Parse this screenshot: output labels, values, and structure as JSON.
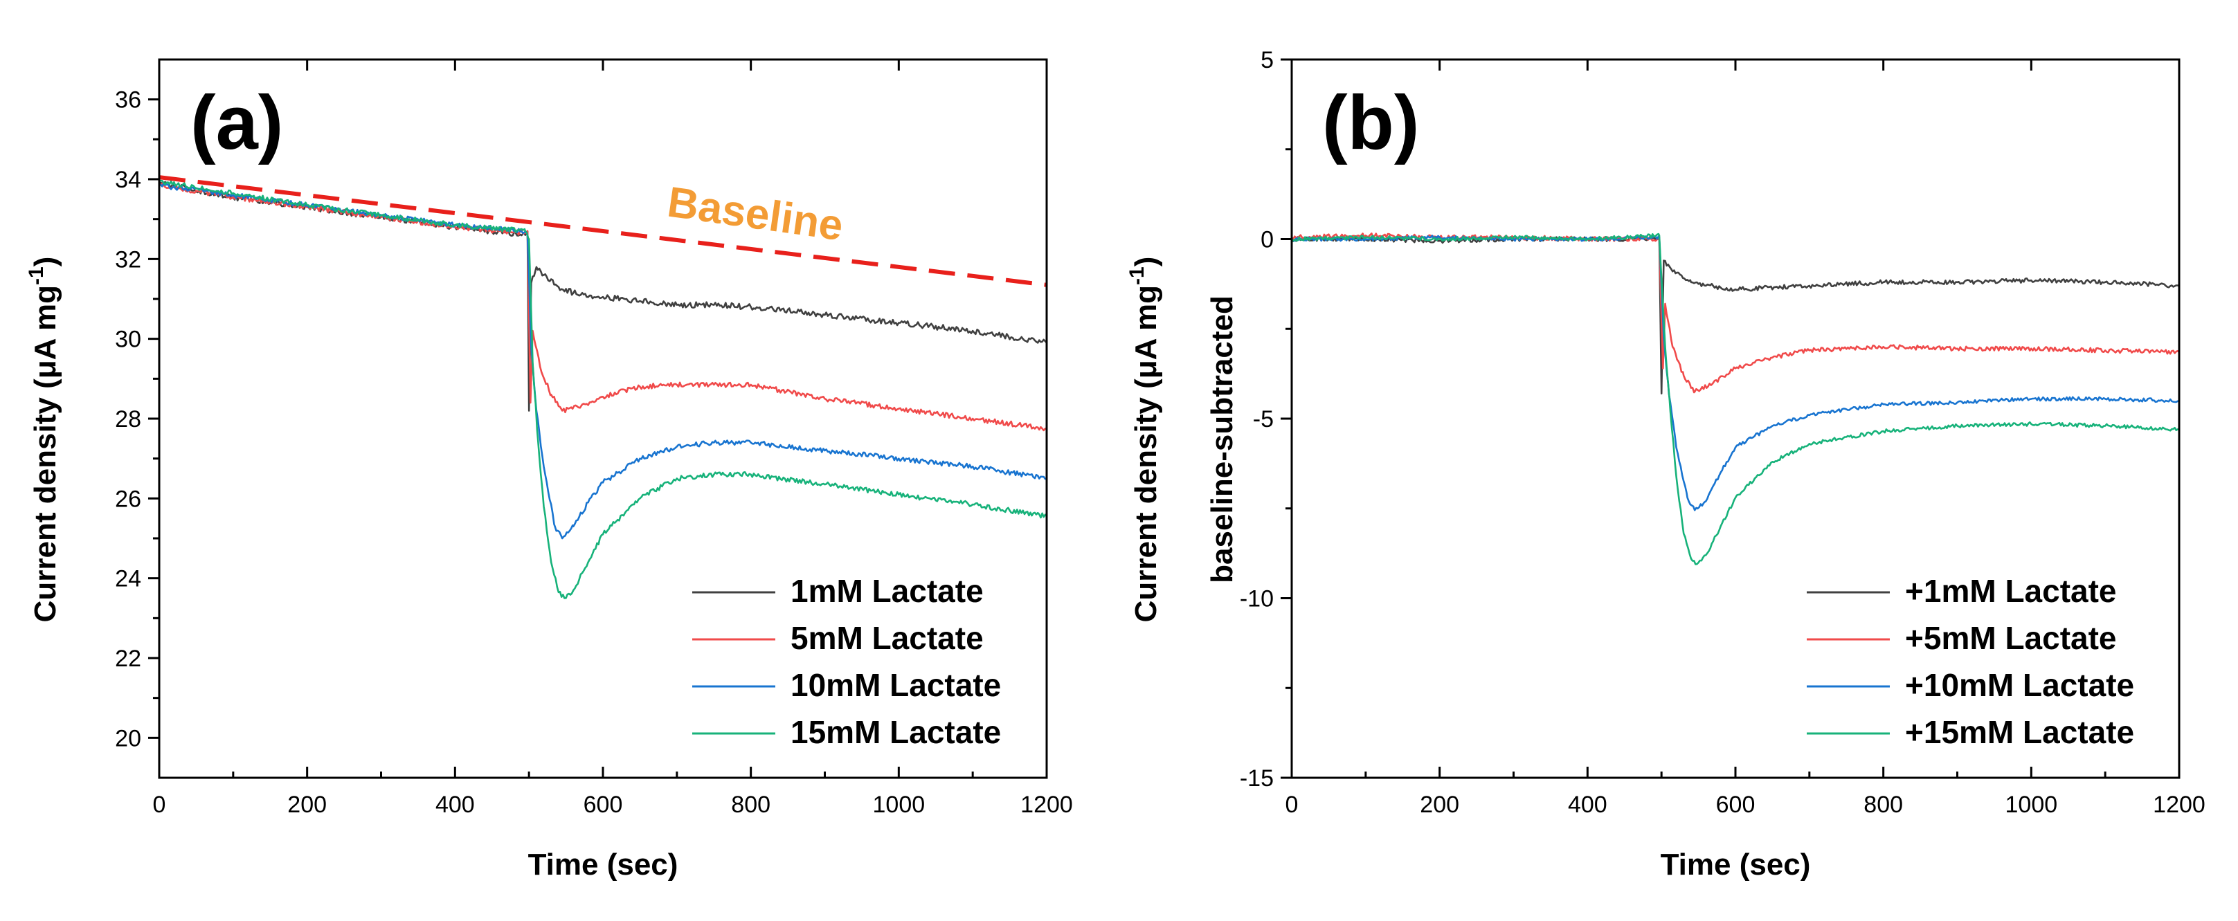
{
  "chart_data": [
    {
      "type": "line",
      "panel_label": "(a)",
      "xlabel": "Time (sec)",
      "ylabel": "Current density (μA mg",
      "ylabel_sup": "-1",
      "ylabel_close": ")",
      "ylabel_line2": "",
      "xlim": [
        0,
        1200
      ],
      "ylim": [
        19,
        37
      ],
      "xticks": [
        0,
        200,
        400,
        600,
        800,
        1000,
        1200
      ],
      "yticks": [
        20,
        22,
        24,
        26,
        28,
        30,
        32,
        34,
        36
      ],
      "grid": false,
      "legend_position": "bottom-right",
      "annotation": {
        "text": "Baseline",
        "color": "#f39c35",
        "x": [
          0,
          1200
        ],
        "y": [
          34.05,
          31.35
        ],
        "line_color": "#e8201b"
      },
      "series": [
        {
          "name": "1mM Lactate",
          "color": "#404040",
          "noise": 0.07,
          "points": [
            [
              0,
              33.9
            ],
            [
              100,
              33.55
            ],
            [
              200,
              33.3
            ],
            [
              300,
              33.05
            ],
            [
              400,
              32.8
            ],
            [
              495,
              32.6
            ],
            [
              498,
              32.7
            ],
            [
              500,
              28.2
            ],
            [
              503,
              31.4
            ],
            [
              510,
              31.8
            ],
            [
              520,
              31.6
            ],
            [
              540,
              31.3
            ],
            [
              560,
              31.15
            ],
            [
              600,
              31.05
            ],
            [
              650,
              30.95
            ],
            [
              700,
              30.85
            ],
            [
              750,
              30.85
            ],
            [
              800,
              30.8
            ],
            [
              900,
              30.6
            ],
            [
              1000,
              30.4
            ],
            [
              1100,
              30.2
            ],
            [
              1200,
              29.9
            ]
          ]
        },
        {
          "name": "5mM Lactate",
          "color": "#f04a4a",
          "noise": 0.06,
          "points": [
            [
              0,
              33.85
            ],
            [
              100,
              33.55
            ],
            [
              200,
              33.3
            ],
            [
              300,
              33.05
            ],
            [
              400,
              32.8
            ],
            [
              495,
              32.65
            ],
            [
              498,
              32.7
            ],
            [
              502,
              28.4
            ],
            [
              505,
              30.2
            ],
            [
              515,
              29.3
            ],
            [
              530,
              28.6
            ],
            [
              545,
              28.2
            ],
            [
              570,
              28.3
            ],
            [
              600,
              28.55
            ],
            [
              650,
              28.8
            ],
            [
              700,
              28.85
            ],
            [
              750,
              28.85
            ],
            [
              800,
              28.85
            ],
            [
              900,
              28.5
            ],
            [
              1000,
              28.25
            ],
            [
              1100,
              28.0
            ],
            [
              1200,
              27.75
            ]
          ]
        },
        {
          "name": "10mM Lactate",
          "color": "#1874d0",
          "noise": 0.06,
          "points": [
            [
              0,
              33.85
            ],
            [
              100,
              33.6
            ],
            [
              200,
              33.35
            ],
            [
              300,
              33.1
            ],
            [
              400,
              32.85
            ],
            [
              495,
              32.7
            ],
            [
              498,
              32.6
            ],
            [
              503,
              29.8
            ],
            [
              510,
              28.2
            ],
            [
              520,
              26.8
            ],
            [
              535,
              25.3
            ],
            [
              545,
              25.0
            ],
            [
              560,
              25.3
            ],
            [
              580,
              25.9
            ],
            [
              600,
              26.4
            ],
            [
              650,
              27.0
            ],
            [
              700,
              27.3
            ],
            [
              750,
              27.4
            ],
            [
              800,
              27.4
            ],
            [
              900,
              27.2
            ],
            [
              1000,
              27.0
            ],
            [
              1100,
              26.8
            ],
            [
              1200,
              26.5
            ]
          ]
        },
        {
          "name": "15mM Lactate",
          "color": "#17b27a",
          "noise": 0.06,
          "points": [
            [
              0,
              33.95
            ],
            [
              100,
              33.65
            ],
            [
              200,
              33.35
            ],
            [
              300,
              33.1
            ],
            [
              400,
              32.85
            ],
            [
              495,
              32.7
            ],
            [
              500,
              32.5
            ],
            [
              505,
              29.4
            ],
            [
              512,
              27.5
            ],
            [
              520,
              25.8
            ],
            [
              530,
              24.4
            ],
            [
              540,
              23.65
            ],
            [
              548,
              23.5
            ],
            [
              560,
              23.7
            ],
            [
              580,
              24.4
            ],
            [
              600,
              25.1
            ],
            [
              650,
              26.0
            ],
            [
              700,
              26.5
            ],
            [
              750,
              26.6
            ],
            [
              800,
              26.6
            ],
            [
              900,
              26.35
            ],
            [
              1000,
              26.1
            ],
            [
              1100,
              25.85
            ],
            [
              1200,
              25.55
            ]
          ]
        }
      ]
    },
    {
      "type": "line",
      "panel_label": "(b)",
      "xlabel": "Time (sec)",
      "ylabel": "Current density (μA mg",
      "ylabel_sup": "-1",
      "ylabel_close": ")",
      "ylabel_line2": "baseline-subtracted",
      "xlim": [
        0,
        1200
      ],
      "ylim": [
        -15,
        5
      ],
      "xticks": [
        0,
        200,
        400,
        600,
        800,
        1000,
        1200
      ],
      "yticks": [
        -15,
        -10,
        -5,
        0,
        5
      ],
      "grid": false,
      "legend_position": "bottom-right",
      "series": [
        {
          "name": "+1mM Lactate",
          "color": "#404040",
          "noise": 0.06,
          "points": [
            [
              0,
              0
            ],
            [
              100,
              0
            ],
            [
              200,
              -0.05
            ],
            [
              300,
              0
            ],
            [
              400,
              0
            ],
            [
              497,
              0
            ],
            [
              500,
              -4.3
            ],
            [
              503,
              -0.6
            ],
            [
              515,
              -0.9
            ],
            [
              540,
              -1.2
            ],
            [
              580,
              -1.35
            ],
            [
              600,
              -1.4
            ],
            [
              700,
              -1.3
            ],
            [
              800,
              -1.2
            ],
            [
              900,
              -1.2
            ],
            [
              1000,
              -1.15
            ],
            [
              1100,
              -1.2
            ],
            [
              1200,
              -1.3
            ]
          ]
        },
        {
          "name": "+5mM Lactate",
          "color": "#f04a4a",
          "noise": 0.06,
          "points": [
            [
              0,
              0.05
            ],
            [
              100,
              0.1
            ],
            [
              200,
              0.05
            ],
            [
              300,
              0.05
            ],
            [
              400,
              0
            ],
            [
              497,
              0
            ],
            [
              502,
              -3.6
            ],
            [
              505,
              -1.8
            ],
            [
              515,
              -3.0
            ],
            [
              530,
              -3.8
            ],
            [
              545,
              -4.25
            ],
            [
              570,
              -4.0
            ],
            [
              600,
              -3.6
            ],
            [
              650,
              -3.3
            ],
            [
              700,
              -3.1
            ],
            [
              800,
              -3.0
            ],
            [
              900,
              -3.05
            ],
            [
              1000,
              -3.05
            ],
            [
              1100,
              -3.1
            ],
            [
              1200,
              -3.15
            ]
          ]
        },
        {
          "name": "+10mM Lactate",
          "color": "#1874d0",
          "noise": 0.05,
          "points": [
            [
              0,
              0
            ],
            [
              100,
              0
            ],
            [
              200,
              0.05
            ],
            [
              300,
              0
            ],
            [
              400,
              0
            ],
            [
              497,
              0.05
            ],
            [
              503,
              -2.7
            ],
            [
              510,
              -4.3
            ],
            [
              520,
              -5.8
            ],
            [
              535,
              -7.2
            ],
            [
              545,
              -7.55
            ],
            [
              560,
              -7.3
            ],
            [
              580,
              -6.5
            ],
            [
              600,
              -5.8
            ],
            [
              650,
              -5.2
            ],
            [
              700,
              -4.9
            ],
            [
              800,
              -4.6
            ],
            [
              900,
              -4.55
            ],
            [
              1000,
              -4.45
            ],
            [
              1100,
              -4.45
            ],
            [
              1200,
              -4.5
            ]
          ]
        },
        {
          "name": "+15mM Lactate",
          "color": "#17b27a",
          "noise": 0.05,
          "points": [
            [
              0,
              0
            ],
            [
              100,
              0.05
            ],
            [
              200,
              0
            ],
            [
              300,
              0.05
            ],
            [
              400,
              0
            ],
            [
              497,
              0.1
            ],
            [
              505,
              -3.0
            ],
            [
              512,
              -4.8
            ],
            [
              520,
              -6.6
            ],
            [
              530,
              -8.2
            ],
            [
              540,
              -8.9
            ],
            [
              548,
              -9.05
            ],
            [
              560,
              -8.8
            ],
            [
              580,
              -8.0
            ],
            [
              600,
              -7.2
            ],
            [
              650,
              -6.2
            ],
            [
              700,
              -5.7
            ],
            [
              800,
              -5.35
            ],
            [
              900,
              -5.2
            ],
            [
              1000,
              -5.15
            ],
            [
              1100,
              -5.2
            ],
            [
              1200,
              -5.3
            ]
          ]
        }
      ]
    }
  ]
}
